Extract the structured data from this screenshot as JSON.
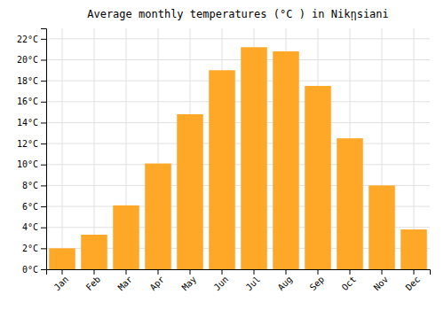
{
  "chart_data": {
    "type": "bar",
    "title": "Average monthly temperatures (°C ) in Nikῃsiani",
    "categories": [
      "Jan",
      "Feb",
      "Mar",
      "Apr",
      "May",
      "Jun",
      "Jul",
      "Aug",
      "Sep",
      "Oct",
      "Nov",
      "Dec"
    ],
    "values": [
      2.0,
      3.3,
      6.1,
      10.1,
      14.8,
      19.0,
      21.2,
      20.8,
      17.5,
      12.5,
      8.0,
      3.8
    ],
    "color": "#FFA726",
    "ylim": [
      0,
      23
    ],
    "yticks": [
      {
        "value": 0,
        "label": "0°C"
      },
      {
        "value": 2,
        "label": "2°C"
      },
      {
        "value": 4,
        "label": "4°C"
      },
      {
        "value": 6,
        "label": "6°C"
      },
      {
        "value": 8,
        "label": "8°C"
      },
      {
        "value": 10,
        "label": "10°C"
      },
      {
        "value": 12,
        "label": "12°C"
      },
      {
        "value": 14,
        "label": "14°C"
      },
      {
        "value": 16,
        "label": "16°C"
      },
      {
        "value": 18,
        "label": "18°C"
      },
      {
        "value": 20,
        "label": "20°C"
      },
      {
        "value": 22,
        "label": "22°C"
      }
    ],
    "grid": true
  }
}
